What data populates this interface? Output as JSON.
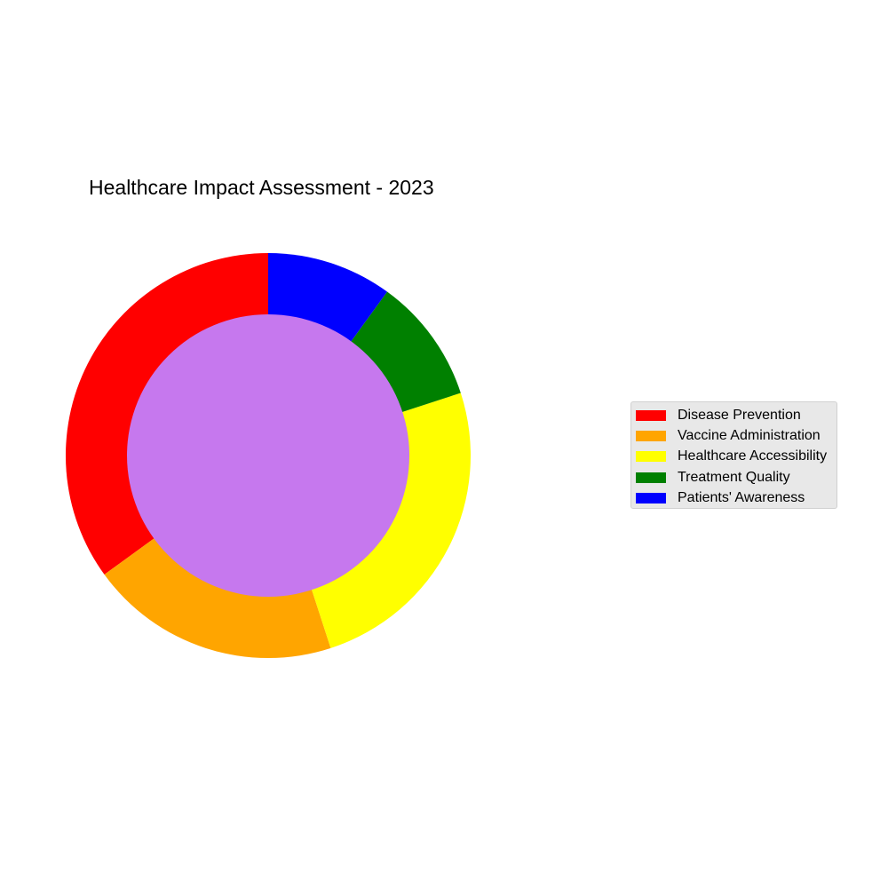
{
  "chart_data": {
    "type": "pie",
    "title": "Healthcare Impact Assessment - 2023",
    "categories": [
      "Disease Prevention",
      "Vaccine Administration",
      "Healthcare Accessibility",
      "Treatment Quality",
      "Patients' Awareness"
    ],
    "values": [
      35,
      20,
      25,
      10,
      10
    ],
    "colors": [
      "#ff0000",
      "#ffa500",
      "#ffff00",
      "#008000",
      "#0000ff"
    ],
    "center_color": "#c678ee",
    "donut": true,
    "start_angle": "top",
    "direction": "counterclockwise",
    "legend_position": "right"
  }
}
